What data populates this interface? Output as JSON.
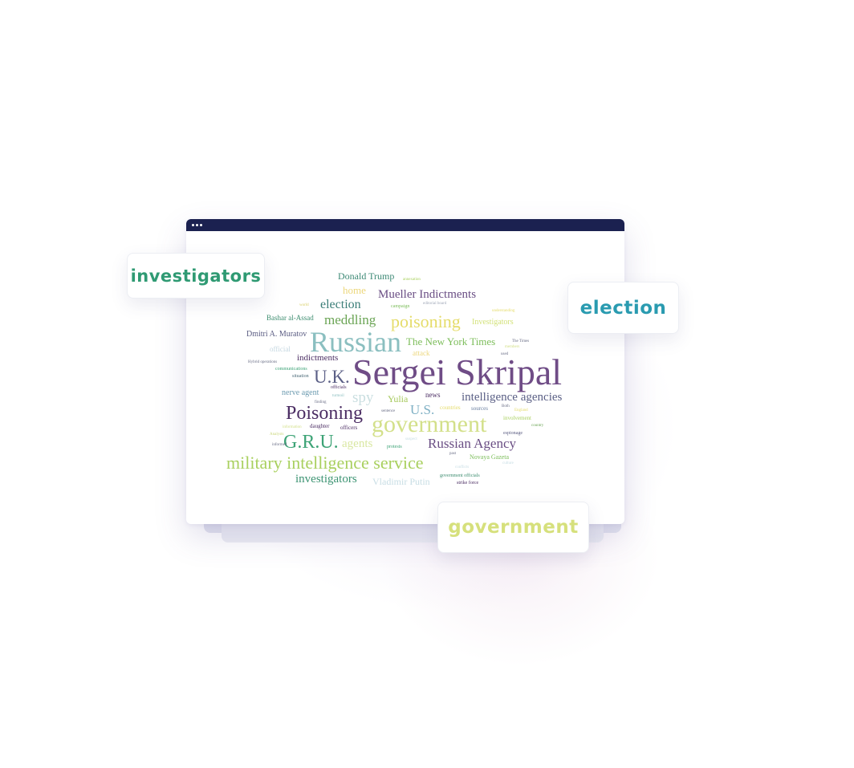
{
  "window": {
    "controls": [
      "•",
      "•",
      "•"
    ]
  },
  "word_cloud": {
    "words": [
      {
        "text": "Sergei Skripal",
        "color": "#6f4c86"
      },
      {
        "text": "Russian",
        "color": "#8bbfc0"
      },
      {
        "text": "government",
        "color": "#d3e08a"
      },
      {
        "text": "military intelligence service",
        "color": "#a9d05f"
      },
      {
        "text": "Poisoning",
        "color": "#4b2d63"
      },
      {
        "text": "G.R.U.",
        "color": "#3da376"
      },
      {
        "text": "U.K.",
        "color": "#5b5f86"
      },
      {
        "text": "Russian Agency",
        "color": "#6a4e84"
      },
      {
        "text": "Mueller Indictments",
        "color": "#6a4e84"
      },
      {
        "text": "poisoning",
        "color": "#e5dc6a"
      },
      {
        "text": "meddling",
        "color": "#6aa454"
      },
      {
        "text": "election",
        "color": "#3b7e78"
      },
      {
        "text": "intelligence agencies",
        "color": "#5a5f85"
      },
      {
        "text": "The New York Times",
        "color": "#7cbd5a"
      },
      {
        "text": "investigators",
        "color": "#3d9473"
      },
      {
        "text": "spy",
        "color": "#c9dee0"
      },
      {
        "text": "agents",
        "color": "#d9e7a2"
      },
      {
        "text": "U.S.",
        "color": "#7fb0c4"
      },
      {
        "text": "Donald Trump",
        "color": "#3e8a76"
      },
      {
        "text": "home",
        "color": "#ecd77b"
      },
      {
        "text": "Vladimir Putin",
        "color": "#c7dde4"
      },
      {
        "text": "Yulia",
        "color": "#a6c95c"
      },
      {
        "text": "indictments",
        "color": "#4b2d63"
      },
      {
        "text": "nerve agent",
        "color": "#6c9bb0"
      },
      {
        "text": "Dmitri A. Muratov",
        "color": "#5a5c82"
      },
      {
        "text": "Bashar al-Assad",
        "color": "#3f8e71"
      },
      {
        "text": "Investigators",
        "color": "#d3e27a"
      },
      {
        "text": "official",
        "color": "#c4d7e0"
      },
      {
        "text": "attack",
        "color": "#ecd77b"
      },
      {
        "text": "news",
        "color": "#4b2d63"
      },
      {
        "text": "Novaya Gazeta",
        "color": "#7cbd5a"
      },
      {
        "text": "countries",
        "color": "#e5dc6a"
      },
      {
        "text": "sources",
        "color": "#6a7fa0"
      },
      {
        "text": "involvement",
        "color": "#a9d05f"
      },
      {
        "text": "espionage",
        "color": "#5a5c82"
      },
      {
        "text": "government officials",
        "color": "#3f8e71"
      },
      {
        "text": "strike force",
        "color": "#4b2d63"
      },
      {
        "text": "daughter",
        "color": "#4b2d63"
      },
      {
        "text": "officers",
        "color": "#4b2d63"
      },
      {
        "text": "protests",
        "color": "#3da376"
      },
      {
        "text": "communications",
        "color": "#3da376"
      },
      {
        "text": "situation",
        "color": "#4b6a78"
      },
      {
        "text": "officials",
        "color": "#4b2d63"
      },
      {
        "text": "Hybrid operations",
        "color": "#6a6e86"
      },
      {
        "text": "campaign",
        "color": "#7cbd5a"
      },
      {
        "text": "editorial board",
        "color": "#a0a8b8"
      },
      {
        "text": "annexation",
        "color": "#a9d05f"
      },
      {
        "text": "world",
        "color": "#d9cf6a"
      },
      {
        "text": "understanding",
        "color": "#e5dc6a"
      },
      {
        "text": "The Times",
        "color": "#6a6e86"
      },
      {
        "text": "members",
        "color": "#d3e08a"
      },
      {
        "text": "turmoil",
        "color": "#8bbfc0"
      },
      {
        "text": "finding",
        "color": "#6a6e86"
      },
      {
        "text": "sentence",
        "color": "#6a6e86"
      },
      {
        "text": "suspect",
        "color": "#c7dde4"
      },
      {
        "text": "Analysts",
        "color": "#c9d67a"
      },
      {
        "text": "informed",
        "color": "#6a6e86"
      },
      {
        "text": "past",
        "color": "#6a6e86"
      },
      {
        "text": "conflicts",
        "color": "#c7dde4"
      },
      {
        "text": "culture",
        "color": "#c7dde4"
      },
      {
        "text": "Both",
        "color": "#6a6e86"
      },
      {
        "text": "England",
        "color": "#e5dc6a"
      },
      {
        "text": "country",
        "color": "#6aa454"
      },
      {
        "text": "used",
        "color": "#6a6e86"
      },
      {
        "text": "information",
        "color": "#d3e08a"
      }
    ]
  },
  "chips": {
    "investigators": {
      "text": "investigators",
      "color": "#2f9a73"
    },
    "election": {
      "text": "election",
      "color": "#2a9bb0"
    },
    "government": {
      "text": "government",
      "color": "#d6e07c"
    }
  }
}
